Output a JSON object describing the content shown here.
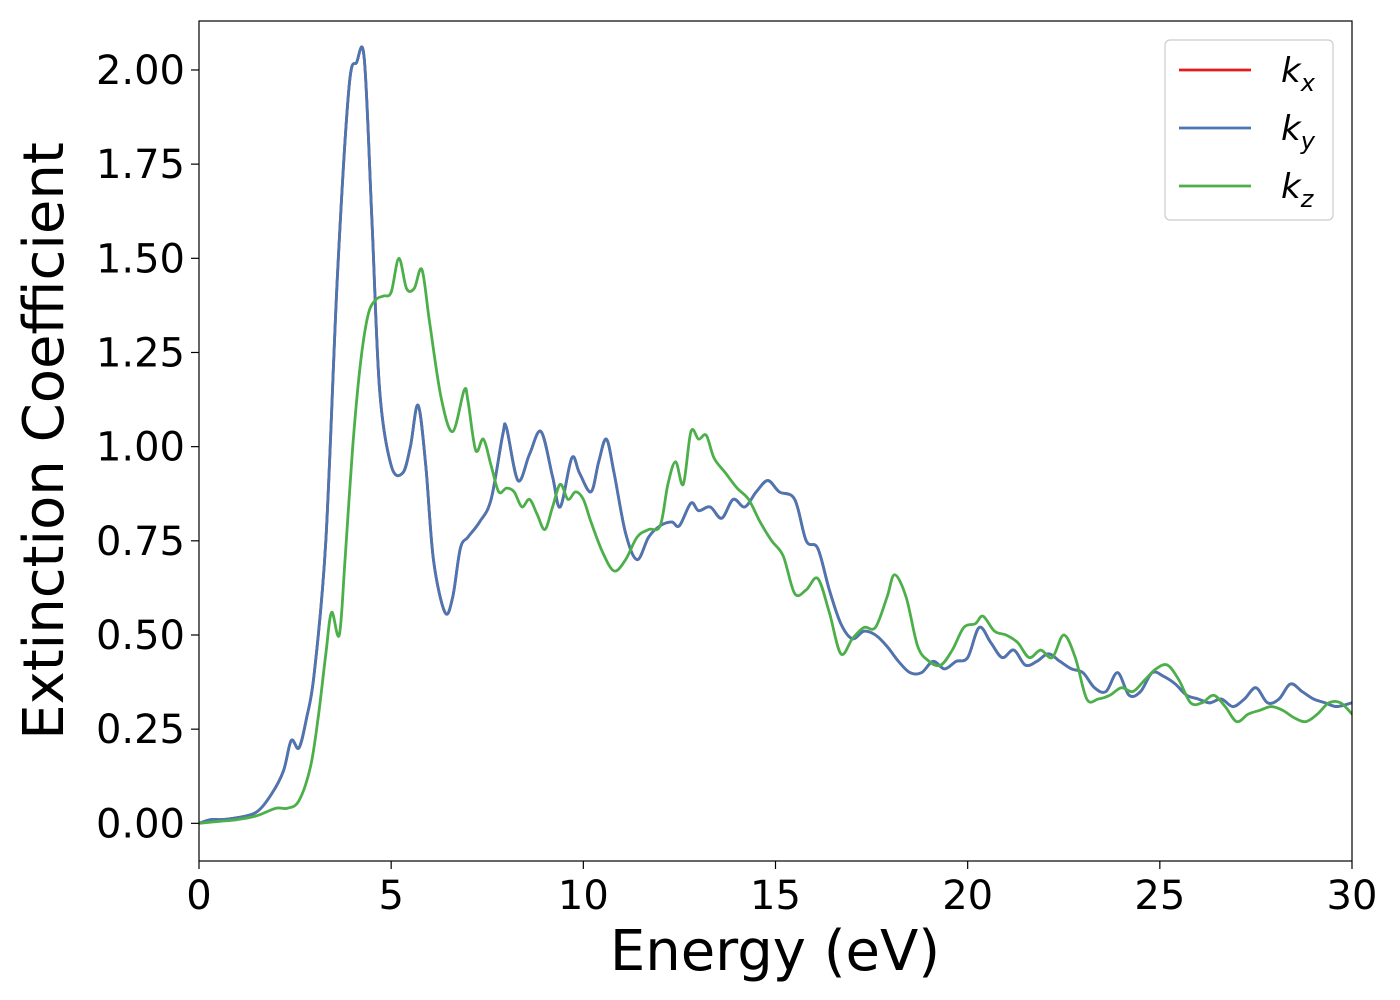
{
  "chart_data": {
    "type": "line",
    "title": "",
    "xlabel": "Energy (eV)",
    "ylabel": "Extinction Coefficient",
    "xlim": [
      0,
      30
    ],
    "ylim": [
      -0.1,
      2.13
    ],
    "x_ticks": [
      0,
      5,
      10,
      15,
      20,
      25,
      30
    ],
    "x_tick_labels": [
      "0",
      "5",
      "10",
      "15",
      "20",
      "25",
      "30"
    ],
    "y_ticks": [
      0.0,
      0.25,
      0.5,
      0.75,
      1.0,
      1.25,
      1.5,
      1.75,
      2.0
    ],
    "y_tick_labels": [
      "0.00",
      "0.25",
      "0.50",
      "0.75",
      "1.00",
      "1.25",
      "1.50",
      "1.75",
      "2.00"
    ],
    "grid": false,
    "legend_position": "top-right",
    "series": [
      {
        "name": "k",
        "subscript": "x",
        "color": "#e41a1c",
        "x": [
          0,
          0.3,
          0.6,
          1.0,
          1.5,
          1.9,
          2.2,
          2.4,
          2.6,
          2.8,
          3.0,
          3.3,
          3.6,
          3.9,
          4.1,
          4.3,
          4.5,
          4.7,
          5.0,
          5.3,
          5.5,
          5.7,
          5.9,
          6.1,
          6.4,
          6.6,
          6.8,
          7.0,
          7.3,
          7.6,
          7.9,
          8.0,
          8.3,
          8.6,
          8.9,
          9.2,
          9.4,
          9.7,
          9.9,
          10.2,
          10.4,
          10.6,
          10.8,
          11.1,
          11.4,
          11.7,
          12.0,
          12.3,
          12.5,
          12.8,
          13.0,
          13.3,
          13.6,
          13.9,
          14.2,
          14.5,
          14.8,
          15.1,
          15.5,
          15.8,
          16.1,
          16.4,
          16.7,
          17.0,
          17.3,
          17.6,
          17.9,
          18.2,
          18.5,
          18.8,
          19.1,
          19.4,
          19.7,
          20.0,
          20.3,
          20.6,
          20.9,
          21.2,
          21.5,
          21.8,
          22.1,
          22.4,
          22.7,
          23.0,
          23.3,
          23.6,
          23.9,
          24.2,
          24.5,
          24.8,
          25.1,
          25.4,
          25.7,
          26.0,
          26.3,
          26.6,
          26.9,
          27.2,
          27.5,
          27.8,
          28.1,
          28.4,
          28.7,
          29.0,
          29.3,
          29.6,
          30.0
        ],
        "values": [
          0.0,
          0.01,
          0.01,
          0.015,
          0.03,
          0.08,
          0.14,
          0.22,
          0.2,
          0.28,
          0.4,
          0.75,
          1.45,
          1.95,
          2.02,
          2.03,
          1.6,
          1.15,
          0.95,
          0.93,
          1.0,
          1.11,
          0.95,
          0.7,
          0.56,
          0.6,
          0.73,
          0.76,
          0.8,
          0.86,
          1.03,
          1.05,
          0.91,
          0.98,
          1.04,
          0.92,
          0.84,
          0.97,
          0.93,
          0.88,
          0.96,
          1.02,
          0.93,
          0.77,
          0.7,
          0.76,
          0.79,
          0.8,
          0.79,
          0.85,
          0.83,
          0.84,
          0.81,
          0.86,
          0.84,
          0.88,
          0.91,
          0.88,
          0.86,
          0.75,
          0.73,
          0.62,
          0.53,
          0.49,
          0.51,
          0.5,
          0.47,
          0.43,
          0.4,
          0.4,
          0.43,
          0.41,
          0.43,
          0.44,
          0.52,
          0.48,
          0.44,
          0.46,
          0.42,
          0.43,
          0.45,
          0.43,
          0.41,
          0.4,
          0.36,
          0.35,
          0.4,
          0.34,
          0.35,
          0.4,
          0.39,
          0.37,
          0.34,
          0.33,
          0.32,
          0.33,
          0.31,
          0.33,
          0.36,
          0.32,
          0.33,
          0.37,
          0.35,
          0.33,
          0.32,
          0.31,
          0.32
        ]
      },
      {
        "name": "k",
        "subscript": "y",
        "color": "#4a77b4",
        "x": [
          0,
          0.3,
          0.6,
          1.0,
          1.5,
          1.9,
          2.2,
          2.4,
          2.6,
          2.8,
          3.0,
          3.3,
          3.6,
          3.9,
          4.1,
          4.3,
          4.5,
          4.7,
          5.0,
          5.3,
          5.5,
          5.7,
          5.9,
          6.1,
          6.4,
          6.6,
          6.8,
          7.0,
          7.3,
          7.6,
          7.9,
          8.0,
          8.3,
          8.6,
          8.9,
          9.2,
          9.4,
          9.7,
          9.9,
          10.2,
          10.4,
          10.6,
          10.8,
          11.1,
          11.4,
          11.7,
          12.0,
          12.3,
          12.5,
          12.8,
          13.0,
          13.3,
          13.6,
          13.9,
          14.2,
          14.5,
          14.8,
          15.1,
          15.5,
          15.8,
          16.1,
          16.4,
          16.7,
          17.0,
          17.3,
          17.6,
          17.9,
          18.2,
          18.5,
          18.8,
          19.1,
          19.4,
          19.7,
          20.0,
          20.3,
          20.6,
          20.9,
          21.2,
          21.5,
          21.8,
          22.1,
          22.4,
          22.7,
          23.0,
          23.3,
          23.6,
          23.9,
          24.2,
          24.5,
          24.8,
          25.1,
          25.4,
          25.7,
          26.0,
          26.3,
          26.6,
          26.9,
          27.2,
          27.5,
          27.8,
          28.1,
          28.4,
          28.7,
          29.0,
          29.3,
          29.6,
          30.0
        ],
        "values": [
          0.0,
          0.01,
          0.01,
          0.015,
          0.03,
          0.08,
          0.14,
          0.22,
          0.2,
          0.28,
          0.4,
          0.75,
          1.45,
          1.95,
          2.02,
          2.03,
          1.6,
          1.15,
          0.95,
          0.93,
          1.0,
          1.11,
          0.95,
          0.7,
          0.56,
          0.6,
          0.73,
          0.76,
          0.8,
          0.86,
          1.03,
          1.05,
          0.91,
          0.98,
          1.04,
          0.92,
          0.84,
          0.97,
          0.93,
          0.88,
          0.96,
          1.02,
          0.93,
          0.77,
          0.7,
          0.76,
          0.79,
          0.8,
          0.79,
          0.85,
          0.83,
          0.84,
          0.81,
          0.86,
          0.84,
          0.88,
          0.91,
          0.88,
          0.86,
          0.75,
          0.73,
          0.62,
          0.53,
          0.49,
          0.51,
          0.5,
          0.47,
          0.43,
          0.4,
          0.4,
          0.43,
          0.41,
          0.43,
          0.44,
          0.52,
          0.48,
          0.44,
          0.46,
          0.42,
          0.43,
          0.45,
          0.43,
          0.41,
          0.4,
          0.36,
          0.35,
          0.4,
          0.34,
          0.35,
          0.4,
          0.39,
          0.37,
          0.34,
          0.33,
          0.32,
          0.33,
          0.31,
          0.33,
          0.36,
          0.32,
          0.33,
          0.37,
          0.35,
          0.33,
          0.32,
          0.31,
          0.32
        ]
      },
      {
        "name": "k",
        "subscript": "z",
        "color": "#4daf4a",
        "x": [
          0,
          0.5,
          1.0,
          1.5,
          2.0,
          2.3,
          2.6,
          2.9,
          3.1,
          3.3,
          3.45,
          3.65,
          3.8,
          4.0,
          4.2,
          4.4,
          4.6,
          4.8,
          5.0,
          5.2,
          5.4,
          5.6,
          5.8,
          6.0,
          6.3,
          6.6,
          6.9,
          7.0,
          7.2,
          7.4,
          7.6,
          7.8,
          8.0,
          8.2,
          8.4,
          8.6,
          8.8,
          9.0,
          9.2,
          9.4,
          9.6,
          9.8,
          10.0,
          10.2,
          10.5,
          10.8,
          11.1,
          11.4,
          11.7,
          12.0,
          12.2,
          12.4,
          12.6,
          12.8,
          13.0,
          13.2,
          13.4,
          13.7,
          14.0,
          14.3,
          14.6,
          14.9,
          15.2,
          15.5,
          15.8,
          16.1,
          16.4,
          16.7,
          17.0,
          17.3,
          17.6,
          17.9,
          18.1,
          18.4,
          18.7,
          19.0,
          19.3,
          19.6,
          19.9,
          20.2,
          20.4,
          20.7,
          21.0,
          21.3,
          21.6,
          21.9,
          22.2,
          22.5,
          22.8,
          23.1,
          23.4,
          23.7,
          24.0,
          24.3,
          24.6,
          24.9,
          25.2,
          25.5,
          25.8,
          26.1,
          26.4,
          26.7,
          27.0,
          27.3,
          27.6,
          27.9,
          28.2,
          28.5,
          28.8,
          29.1,
          29.4,
          29.7,
          30.0
        ],
        "values": [
          0.0,
          0.005,
          0.01,
          0.02,
          0.04,
          0.04,
          0.06,
          0.15,
          0.28,
          0.45,
          0.56,
          0.5,
          0.7,
          1.0,
          1.22,
          1.35,
          1.39,
          1.4,
          1.41,
          1.5,
          1.42,
          1.42,
          1.47,
          1.33,
          1.13,
          1.04,
          1.15,
          1.12,
          0.99,
          1.02,
          0.95,
          0.88,
          0.89,
          0.88,
          0.84,
          0.86,
          0.82,
          0.78,
          0.84,
          0.9,
          0.86,
          0.88,
          0.86,
          0.8,
          0.72,
          0.67,
          0.7,
          0.76,
          0.78,
          0.79,
          0.9,
          0.96,
          0.9,
          1.04,
          1.02,
          1.03,
          0.97,
          0.93,
          0.89,
          0.86,
          0.8,
          0.75,
          0.71,
          0.61,
          0.62,
          0.65,
          0.56,
          0.45,
          0.49,
          0.52,
          0.52,
          0.6,
          0.66,
          0.6,
          0.47,
          0.43,
          0.42,
          0.46,
          0.52,
          0.53,
          0.55,
          0.51,
          0.5,
          0.48,
          0.44,
          0.46,
          0.44,
          0.5,
          0.44,
          0.33,
          0.33,
          0.34,
          0.36,
          0.35,
          0.38,
          0.41,
          0.42,
          0.38,
          0.32,
          0.32,
          0.34,
          0.31,
          0.27,
          0.29,
          0.3,
          0.31,
          0.3,
          0.28,
          0.27,
          0.29,
          0.32,
          0.32,
          0.29
        ]
      }
    ]
  }
}
